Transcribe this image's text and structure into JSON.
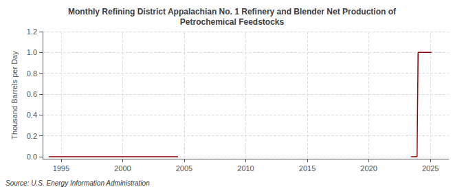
{
  "chart_data": {
    "type": "line",
    "title": "Monthly Refining District Appalachian No. 1 Refinery and Blender Net Production of\nPetrochemical Feedstocks",
    "ylabel": "Thousand Barrels per Day",
    "annotation": "Source: U.S. Energy Information Administration",
    "xlim": [
      1993.5,
      2026.5
    ],
    "ylim": [
      -0.02,
      1.2
    ],
    "xticks": [
      1995,
      2000,
      2005,
      2010,
      2015,
      2020,
      2025
    ],
    "yticks": [
      {
        "value": 0.0,
        "label": "0.0"
      },
      0.2,
      0.4,
      0.6,
      0.8,
      {
        "value": 1.0,
        "label": "1.0"
      },
      1.2
    ],
    "grid": true,
    "series": [
      {
        "color": "#8b0000",
        "x": [
          1994.0,
          1994.083,
          1994.167,
          1994.25,
          1994.333,
          1994.417,
          1994.5,
          1994.583,
          1994.667,
          1994.75,
          1994.833,
          1994.917,
          1995.0,
          1995.083,
          1995.167,
          1995.25,
          1995.333,
          1995.417,
          1995.5,
          1995.583,
          1995.667,
          1995.75,
          1995.833,
          1995.917,
          1996.0,
          1996.083,
          1996.167,
          1996.25,
          1996.333,
          1996.417,
          1996.5,
          1996.583,
          1996.667,
          1996.75,
          1996.833,
          1996.917,
          1997.0,
          1997.083,
          1997.167,
          1997.25,
          1997.333,
          1997.417,
          1997.5,
          1997.583,
          1997.667,
          1997.75,
          1997.833,
          1997.917,
          1998.0,
          1998.083,
          1998.167,
          1998.25,
          1998.333,
          1998.417,
          1998.5,
          1998.583,
          1998.667,
          1998.75,
          1998.833,
          1998.917,
          1999.0,
          1999.083,
          1999.167,
          1999.25,
          1999.333,
          1999.417,
          1999.5,
          1999.583,
          1999.667,
          1999.75,
          1999.833,
          1999.917,
          2000.0,
          2000.083,
          2000.167,
          2000.25,
          2000.333,
          2000.417,
          2000.5,
          2000.583,
          2000.667,
          2000.75,
          2000.833,
          2000.917,
          2001.0,
          2001.083,
          2001.167,
          2001.25,
          2001.333,
          2001.417,
          2001.5,
          2001.583,
          2001.667,
          2001.75,
          2001.833,
          2001.917,
          2002.0,
          2002.083,
          2002.167,
          2002.25,
          2002.333,
          2002.417,
          2002.5,
          2002.583,
          2002.667,
          2002.75,
          2002.833,
          2002.917,
          2003.0,
          2003.083,
          2003.167,
          2003.25,
          2003.333,
          2003.417,
          2003.5,
          2003.583,
          2003.667,
          2003.75,
          2003.833,
          2003.917,
          2004.0,
          2004.083,
          2004.167,
          2004.25,
          2004.333,
          2004.417,
          2004.5
        ],
        "values": [
          0.0,
          0.0,
          0.0,
          0.0,
          0.0,
          0.0,
          0.0,
          0.0,
          0.0,
          0.0,
          0.0,
          0.0,
          0.0,
          0.0,
          0.0,
          0.0,
          0.0,
          0.0,
          0.0,
          0.0,
          0.0,
          0.0,
          0.0,
          0.0,
          0.0,
          0.0,
          0.0,
          0.0,
          0.0,
          0.0,
          0.0,
          0.0,
          0.0,
          0.0,
          0.0,
          0.0,
          0.0,
          0.0,
          0.0,
          0.0,
          0.0,
          0.0,
          0.0,
          0.0,
          0.0,
          0.0,
          0.0,
          0.0,
          0.0,
          0.0,
          0.0,
          0.0,
          0.0,
          0.0,
          0.0,
          0.0,
          0.0,
          0.0,
          0.0,
          0.0,
          0.0,
          0.0,
          0.0,
          0.0,
          0.0,
          0.0,
          0.0,
          0.0,
          0.0,
          0.0,
          0.0,
          0.0,
          0.0,
          0.0,
          0.0,
          0.0,
          0.0,
          0.0,
          0.0,
          0.0,
          0.0,
          0.0,
          0.0,
          0.0,
          0.0,
          0.0,
          0.0,
          0.0,
          0.0,
          0.0,
          0.0,
          0.0,
          0.0,
          0.0,
          0.0,
          0.0,
          0.0,
          0.0,
          0.0,
          0.0,
          0.0,
          0.0,
          0.0,
          0.0,
          0.0,
          0.0,
          0.0,
          0.0,
          0.0,
          0.0,
          0.0,
          0.0,
          0.0,
          0.0,
          0.0,
          0.0,
          0.0,
          0.0,
          0.0,
          0.0,
          0.0,
          0.0,
          0.0,
          0.0,
          0.0,
          0.0,
          0.0
        ]
      },
      {
        "color": "#8b0000",
        "x": [
          2023.417,
          2023.5,
          2023.583,
          2023.667,
          2023.75,
          2023.833,
          2023.917,
          2024.0,
          2024.083,
          2024.167,
          2024.25,
          2024.333,
          2024.417,
          2024.5,
          2024.583,
          2024.667,
          2024.75,
          2024.833,
          2024.917,
          2025.0,
          2025.083
        ],
        "values": [
          0.0,
          0.0,
          0.0,
          0.0,
          0.0,
          0.0,
          0.0,
          1.0,
          1.0,
          1.0,
          1.0,
          1.0,
          1.0,
          1.0,
          1.0,
          1.0,
          1.0,
          1.0,
          1.0,
          1.0,
          1.0
        ]
      }
    ]
  }
}
